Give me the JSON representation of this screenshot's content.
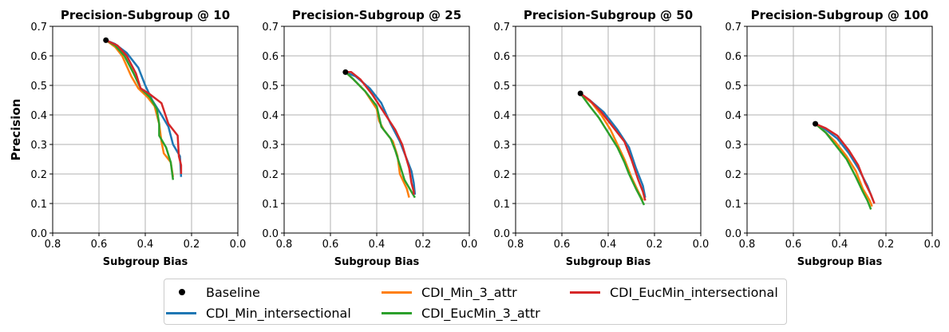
{
  "ylabel": "Precision",
  "series_names": [
    "CDI_Min_intersectional",
    "CDI_Min_3_attr",
    "CDI_EucMin_3_attr",
    "CDI_EucMin_intersectional"
  ],
  "colors": {
    "Baseline": "#000000",
    "CDI_Min_intersectional": "#1f77b4",
    "CDI_Min_3_attr": "#ff7f0e",
    "CDI_EucMin_3_attr": "#2ca02c",
    "CDI_EucMin_intersectional": "#d62728"
  },
  "legend": [
    {
      "label": "Baseline",
      "kind": "dot",
      "color": "#000000"
    },
    {
      "label": "CDI_Min_intersectional",
      "kind": "line",
      "color": "#1f77b4"
    },
    {
      "label": "CDI_Min_3_attr",
      "kind": "line",
      "color": "#ff7f0e"
    },
    {
      "label": "CDI_EucMin_3_attr",
      "kind": "line",
      "color": "#2ca02c"
    },
    {
      "label": "CDI_EucMin_intersectional",
      "kind": "line",
      "color": "#d62728"
    }
  ],
  "chart_data": [
    {
      "type": "line",
      "title": "Precision-Subgroup @ 10",
      "xlabel": "Subgroup Bias",
      "ylabel": "Precision",
      "xlim": [
        0.8,
        0.0
      ],
      "ylim": [
        0.0,
        0.7
      ],
      "xticks": [
        "0.8",
        "0.6",
        "0.4",
        "0.2",
        "0.0"
      ],
      "yticks": [
        "0.0",
        "0.1",
        "0.2",
        "0.3",
        "0.4",
        "0.5",
        "0.6",
        "0.7"
      ],
      "grid": true,
      "baseline": {
        "x": 0.57,
        "y": 0.653
      },
      "series": [
        {
          "name": "CDI_Min_intersectional",
          "points": [
            [
              0.57,
              0.653
            ],
            [
              0.53,
              0.64
            ],
            [
              0.48,
              0.61
            ],
            [
              0.43,
              0.56
            ],
            [
              0.4,
              0.5
            ],
            [
              0.37,
              0.45
            ],
            [
              0.33,
              0.4
            ],
            [
              0.3,
              0.36
            ],
            [
              0.28,
              0.3
            ],
            [
              0.25,
              0.26
            ],
            [
              0.245,
              0.19
            ]
          ]
        },
        {
          "name": "CDI_Min_3_attr",
          "points": [
            [
              0.57,
              0.653
            ],
            [
              0.53,
              0.63
            ],
            [
              0.5,
              0.6
            ],
            [
              0.46,
              0.53
            ],
            [
              0.43,
              0.49
            ],
            [
              0.39,
              0.46
            ],
            [
              0.36,
              0.43
            ],
            [
              0.34,
              0.37
            ],
            [
              0.33,
              0.31
            ],
            [
              0.32,
              0.27
            ],
            [
              0.29,
              0.24
            ],
            [
              0.28,
              0.19
            ]
          ]
        },
        {
          "name": "CDI_EucMin_3_attr",
          "points": [
            [
              0.57,
              0.653
            ],
            [
              0.53,
              0.635
            ],
            [
              0.49,
              0.6
            ],
            [
              0.45,
              0.54
            ],
            [
              0.42,
              0.49
            ],
            [
              0.38,
              0.46
            ],
            [
              0.35,
              0.42
            ],
            [
              0.34,
              0.37
            ],
            [
              0.34,
              0.33
            ],
            [
              0.31,
              0.29
            ],
            [
              0.29,
              0.24
            ],
            [
              0.28,
              0.18
            ]
          ]
        },
        {
          "name": "CDI_EucMin_intersectional",
          "points": [
            [
              0.57,
              0.653
            ],
            [
              0.52,
              0.635
            ],
            [
              0.48,
              0.6
            ],
            [
              0.44,
              0.54
            ],
            [
              0.42,
              0.49
            ],
            [
              0.38,
              0.47
            ],
            [
              0.33,
              0.44
            ],
            [
              0.3,
              0.37
            ],
            [
              0.26,
              0.33
            ],
            [
              0.255,
              0.26
            ],
            [
              0.245,
              0.23
            ],
            [
              0.245,
              0.2
            ]
          ]
        }
      ]
    },
    {
      "type": "line",
      "title": "Precision-Subgroup @ 25",
      "xlabel": "Subgroup Bias",
      "ylabel": "",
      "xlim": [
        0.8,
        0.0
      ],
      "ylim": [
        0.0,
        0.7
      ],
      "xticks": [
        "0.8",
        "0.6",
        "0.4",
        "0.2",
        "0.0"
      ],
      "yticks": [
        "0.0",
        "0.1",
        "0.2",
        "0.3",
        "0.4",
        "0.5",
        "0.6",
        "0.7"
      ],
      "grid": true,
      "baseline": {
        "x": 0.535,
        "y": 0.545
      },
      "series": [
        {
          "name": "CDI_Min_intersectional",
          "points": [
            [
              0.535,
              0.545
            ],
            [
              0.49,
              0.53
            ],
            [
              0.43,
              0.49
            ],
            [
              0.38,
              0.44
            ],
            [
              0.34,
              0.37
            ],
            [
              0.3,
              0.31
            ],
            [
              0.27,
              0.25
            ],
            [
              0.25,
              0.21
            ],
            [
              0.24,
              0.17
            ],
            [
              0.235,
              0.13
            ]
          ]
        },
        {
          "name": "CDI_Min_3_attr",
          "points": [
            [
              0.535,
              0.545
            ],
            [
              0.5,
              0.52
            ],
            [
              0.45,
              0.48
            ],
            [
              0.4,
              0.42
            ],
            [
              0.39,
              0.38
            ],
            [
              0.37,
              0.35
            ],
            [
              0.33,
              0.31
            ],
            [
              0.31,
              0.26
            ],
            [
              0.3,
              0.2
            ],
            [
              0.27,
              0.15
            ],
            [
              0.26,
              0.12
            ]
          ]
        },
        {
          "name": "CDI_EucMin_3_attr",
          "points": [
            [
              0.535,
              0.545
            ],
            [
              0.5,
              0.52
            ],
            [
              0.45,
              0.48
            ],
            [
              0.4,
              0.43
            ],
            [
              0.38,
              0.36
            ],
            [
              0.34,
              0.32
            ],
            [
              0.32,
              0.28
            ],
            [
              0.3,
              0.23
            ],
            [
              0.28,
              0.18
            ],
            [
              0.25,
              0.14
            ],
            [
              0.235,
              0.12
            ]
          ]
        },
        {
          "name": "CDI_EucMin_intersectional",
          "points": [
            [
              0.535,
              0.545
            ],
            [
              0.51,
              0.545
            ],
            [
              0.47,
              0.52
            ],
            [
              0.42,
              0.47
            ],
            [
              0.37,
              0.41
            ],
            [
              0.32,
              0.35
            ],
            [
              0.29,
              0.3
            ],
            [
              0.26,
              0.22
            ],
            [
              0.25,
              0.17
            ],
            [
              0.24,
              0.14
            ],
            [
              0.24,
              0.13
            ]
          ]
        }
      ]
    },
    {
      "type": "line",
      "title": "Precision-Subgroup @ 50",
      "xlabel": "Subgroup Bias",
      "ylabel": "",
      "xlim": [
        0.8,
        0.0
      ],
      "ylim": [
        0.0,
        0.7
      ],
      "xticks": [
        "0.8",
        "0.6",
        "0.4",
        "0.2",
        "0.0"
      ],
      "yticks": [
        "0.0",
        "0.1",
        "0.2",
        "0.3",
        "0.4",
        "0.5",
        "0.6",
        "0.7"
      ],
      "grid": true,
      "baseline": {
        "x": 0.52,
        "y": 0.473
      },
      "series": [
        {
          "name": "CDI_Min_intersectional",
          "points": [
            [
              0.52,
              0.473
            ],
            [
              0.48,
              0.45
            ],
            [
              0.42,
              0.41
            ],
            [
              0.36,
              0.35
            ],
            [
              0.31,
              0.29
            ],
            [
              0.28,
              0.22
            ],
            [
              0.25,
              0.16
            ],
            [
              0.24,
              0.12
            ]
          ]
        },
        {
          "name": "CDI_Min_3_attr",
          "points": [
            [
              0.52,
              0.473
            ],
            [
              0.47,
              0.44
            ],
            [
              0.43,
              0.4
            ],
            [
              0.39,
              0.35
            ],
            [
              0.36,
              0.3
            ],
            [
              0.33,
              0.25
            ],
            [
              0.3,
              0.19
            ],
            [
              0.27,
              0.14
            ],
            [
              0.25,
              0.11
            ]
          ]
        },
        {
          "name": "CDI_EucMin_3_attr",
          "points": [
            [
              0.52,
              0.473
            ],
            [
              0.48,
              0.43
            ],
            [
              0.44,
              0.39
            ],
            [
              0.4,
              0.34
            ],
            [
              0.36,
              0.29
            ],
            [
              0.33,
              0.24
            ],
            [
              0.31,
              0.2
            ],
            [
              0.28,
              0.15
            ],
            [
              0.26,
              0.12
            ],
            [
              0.245,
              0.095
            ]
          ]
        },
        {
          "name": "CDI_EucMin_intersectional",
          "points": [
            [
              0.52,
              0.473
            ],
            [
              0.48,
              0.45
            ],
            [
              0.43,
              0.41
            ],
            [
              0.38,
              0.36
            ],
            [
              0.33,
              0.31
            ],
            [
              0.3,
              0.25
            ],
            [
              0.27,
              0.18
            ],
            [
              0.25,
              0.14
            ],
            [
              0.24,
              0.11
            ]
          ]
        }
      ]
    },
    {
      "type": "line",
      "title": "Precision-Subgroup @ 100",
      "xlabel": "Subgroup Bias",
      "ylabel": "",
      "xlim": [
        0.8,
        0.0
      ],
      "ylim": [
        0.0,
        0.7
      ],
      "xticks": [
        "0.8",
        "0.6",
        "0.4",
        "0.2",
        "0.0"
      ],
      "yticks": [
        "0.0",
        "0.1",
        "0.2",
        "0.3",
        "0.4",
        "0.5",
        "0.6",
        "0.7"
      ],
      "grid": true,
      "baseline": {
        "x": 0.505,
        "y": 0.37
      },
      "series": [
        {
          "name": "CDI_Min_intersectional",
          "points": [
            [
              0.505,
              0.37
            ],
            [
              0.46,
              0.35
            ],
            [
              0.41,
              0.32
            ],
            [
              0.36,
              0.27
            ],
            [
              0.32,
              0.22
            ],
            [
              0.28,
              0.16
            ],
            [
              0.255,
              0.11
            ]
          ]
        },
        {
          "name": "CDI_Min_3_attr",
          "points": [
            [
              0.505,
              0.37
            ],
            [
              0.46,
              0.34
            ],
            [
              0.42,
              0.31
            ],
            [
              0.37,
              0.26
            ],
            [
              0.33,
              0.21
            ],
            [
              0.3,
              0.15
            ],
            [
              0.27,
              0.11
            ],
            [
              0.26,
              0.09
            ]
          ]
        },
        {
          "name": "CDI_EucMin_3_attr",
          "points": [
            [
              0.505,
              0.37
            ],
            [
              0.46,
              0.34
            ],
            [
              0.42,
              0.3
            ],
            [
              0.37,
              0.25
            ],
            [
              0.33,
              0.19
            ],
            [
              0.3,
              0.14
            ],
            [
              0.28,
              0.11
            ],
            [
              0.265,
              0.08
            ]
          ]
        },
        {
          "name": "CDI_EucMin_intersectional",
          "points": [
            [
              0.505,
              0.37
            ],
            [
              0.46,
              0.355
            ],
            [
              0.41,
              0.33
            ],
            [
              0.36,
              0.28
            ],
            [
              0.32,
              0.23
            ],
            [
              0.29,
              0.17
            ],
            [
              0.265,
              0.13
            ],
            [
              0.25,
              0.1
            ]
          ]
        }
      ]
    }
  ]
}
